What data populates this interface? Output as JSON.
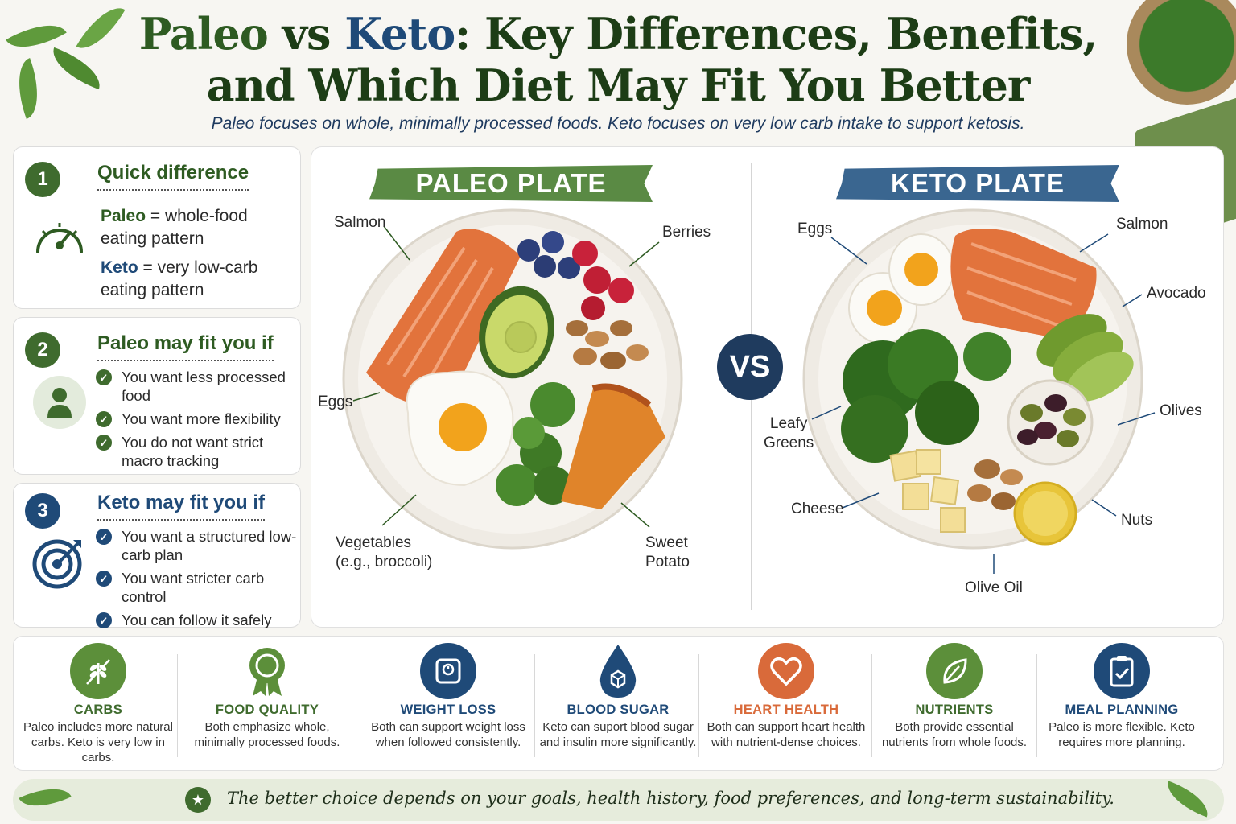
{
  "header": {
    "title_paleo": "Paleo",
    "title_vs": " vs ",
    "title_keto": "Keto",
    "title_rest_line1": ": Key Differences, Benefits,",
    "title_line2": "and Which Diet May Fit You Better",
    "subtitle": "Paleo focuses on whole, minimally processed foods. Keto focuses on very low carb intake to support ketosis."
  },
  "colors": {
    "paleo_green": "#3f6b2e",
    "keto_blue": "#1f4a78",
    "accent_orange": "#d96a3a"
  },
  "quick_difference": {
    "number": "1",
    "title": "Quick difference",
    "icon": "speedometer-icon",
    "paleo_term": "Paleo",
    "paleo_def": " = whole-food eating pattern",
    "keto_term": "Keto",
    "keto_def": " = very low-carb eating pattern"
  },
  "paleo_fit": {
    "number": "2",
    "title": "Paleo may fit you if",
    "icon": "person-icon",
    "items": [
      "You want less processed food",
      "You want more flexibility",
      "You do not want strict macro tracking"
    ]
  },
  "keto_fit": {
    "number": "3",
    "title": "Keto may fit you if",
    "icon": "target-icon",
    "items": [
      "You want a structured low-carb plan",
      "You want stricter carb control",
      "You can follow it safely"
    ]
  },
  "paleo_plate": {
    "banner": "PALEO PLATE",
    "labels": {
      "salmon": "Salmon",
      "berries": "Berries",
      "eggs": "Eggs",
      "vegetables_1": "Vegetables",
      "vegetables_2": "(e.g., broccoli)",
      "sweet_potato_1": "Sweet",
      "sweet_potato_2": "Potato"
    }
  },
  "vs_label": "VS",
  "keto_plate": {
    "banner": "KETO PLATE",
    "labels": {
      "eggs": "Eggs",
      "salmon": "Salmon",
      "avocado": "Avocado",
      "leafy_1": "Leafy",
      "leafy_2": "Greens",
      "olives": "Olives",
      "cheese": "Cheese",
      "nuts": "Nuts",
      "olive_oil": "Olive Oil"
    }
  },
  "benefits": [
    {
      "title": "CARBS",
      "text": "Paleo includes more natural carbs. Keto is very low in carbs.",
      "icon": "wheat-icon",
      "color": "#5c8f3a"
    },
    {
      "title": "FOOD QUALITY",
      "text": "Both emphasize whole, minimally processed foods.",
      "icon": "award-icon",
      "color": "#5c8f3a"
    },
    {
      "title": "WEIGHT LOSS",
      "text": "Both can support weight loss when followed consistently.",
      "icon": "scale-icon",
      "color": "#1f4a78"
    },
    {
      "title": "BLOOD SUGAR",
      "text": "Keto can suport blood sugar and insulin more significantly.",
      "icon": "drop-icon",
      "color": "#1f4a78"
    },
    {
      "title": "HEART HEALTH",
      "text": "Both can support heart health with nutrient-dense choices.",
      "icon": "heart-icon",
      "color": "#d96a3a"
    },
    {
      "title": "NUTRIENTS",
      "text": "Both provide essential nutrients from whole foods.",
      "icon": "leaf-icon",
      "color": "#5c8f3a"
    },
    {
      "title": "MEAL PLANNING",
      "text": "Paleo is more flexible. Keto requires more planning.",
      "icon": "clipboard-icon",
      "color": "#1f4a78"
    }
  ],
  "footer": {
    "text": "The better choice depends on your goals, health history, food preferences, and long-term sustainability."
  }
}
